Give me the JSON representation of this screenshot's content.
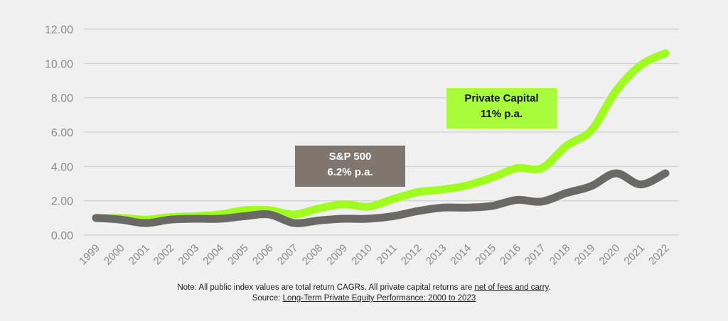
{
  "chart_data": {
    "type": "line",
    "x": [
      "1999",
      "2000",
      "2001",
      "2002",
      "2003",
      "2004",
      "2005",
      "2006",
      "2007",
      "2008",
      "2009",
      "2010",
      "2011",
      "2012",
      "2013",
      "2014",
      "2015",
      "2016",
      "2017",
      "2018",
      "2019",
      "2020",
      "2021",
      "2022"
    ],
    "series": [
      {
        "name": "Private Capital",
        "color": "#9efc1e",
        "values": [
          1.0,
          1.0,
          0.9,
          1.05,
          1.1,
          1.2,
          1.45,
          1.45,
          1.2,
          1.55,
          1.8,
          1.65,
          2.1,
          2.5,
          2.65,
          2.9,
          3.35,
          3.9,
          3.9,
          5.2,
          6.1,
          8.4,
          9.9,
          10.6
        ]
      },
      {
        "name": "S&P 500",
        "color": "#6b6966",
        "values": [
          1.0,
          0.9,
          0.7,
          0.9,
          0.95,
          0.95,
          1.1,
          1.2,
          0.7,
          0.85,
          0.95,
          0.95,
          1.1,
          1.4,
          1.6,
          1.6,
          1.7,
          2.05,
          1.95,
          2.45,
          2.85,
          3.6,
          2.95,
          3.6
        ]
      }
    ],
    "yticks": [
      "0.00",
      "2.00",
      "4.00",
      "6.00",
      "8.00",
      "10.00",
      "12.00"
    ],
    "ylim": [
      0,
      12
    ],
    "grid": true,
    "annotations": [
      {
        "line1": "Private Capital",
        "line2": "11% p.a.",
        "bg": "#a8fc3c"
      },
      {
        "line1": "S&P 500",
        "line2": "6.2% p.a.",
        "bg": "#7f7670"
      }
    ]
  },
  "footer": {
    "note_prefix": "Note: All public index values are total return CAGRs. All private capital returns are ",
    "note_link": "net of fees and carry",
    "note_suffix": ".",
    "source_prefix": "Source: ",
    "source_link": "Long-Term Private Equity Performance: 2000 to 2023"
  }
}
